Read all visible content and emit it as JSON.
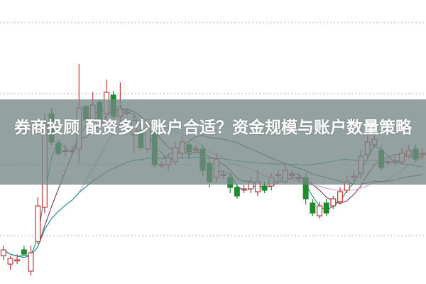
{
  "title": "券商投顾 配资多少账户合适？资金规模与账户数量策略",
  "chart_data": {
    "type": "candlestick",
    "grid": true,
    "ylim": [
      0,
      100
    ],
    "colors": {
      "up": "#c0393b",
      "down": "#1f8a2e",
      "band": "#768686",
      "ma": [
        "#2a8a8a",
        "#7a3a4a",
        "#d79be0",
        "#3c6e30",
        "#2b9ea0"
      ]
    },
    "ohlc": [
      [
        10,
        12,
        13.5,
        8.5
      ],
      [
        7,
        9,
        10,
        5
      ],
      [
        8.5,
        8.5,
        10.5,
        7
      ],
      [
        12,
        10.5,
        13.5,
        10
      ],
      [
        4.5,
        11,
        13.5,
        3
      ],
      [
        15,
        27.5,
        30.5,
        14
      ],
      [
        27,
        56,
        60,
        25
      ],
      [
        60,
        50,
        62,
        49
      ],
      [
        49.5,
        46,
        50,
        45
      ],
      [
        47,
        47,
        49,
        45
      ],
      [
        47,
        47,
        49,
        45
      ],
      [
        47.5,
        62,
        77.5,
        42.5
      ],
      [
        62.5,
        58,
        63,
        57
      ],
      [
        57.5,
        63,
        67.5,
        55
      ],
      [
        64,
        58,
        65,
        57
      ],
      [
        60,
        67.5,
        72,
        58
      ],
      [
        66.5,
        59,
        68,
        58
      ],
      [
        59,
        61.5,
        71,
        57
      ],
      [
        60.5,
        60.5,
        62,
        59.5
      ],
      [
        52.5,
        57.5,
        60,
        46
      ],
      [
        54,
        48,
        56,
        47
      ],
      [
        47.5,
        55,
        57,
        46
      ],
      [
        55,
        42,
        57,
        41
      ],
      [
        42,
        42,
        43,
        41
      ],
      [
        42,
        44.5,
        46,
        40
      ],
      [
        43,
        48,
        50,
        42
      ],
      [
        46,
        50,
        52,
        44
      ],
      [
        49,
        46.5,
        50,
        44
      ],
      [
        47.5,
        47.5,
        49,
        46
      ],
      [
        47.5,
        40,
        49,
        38
      ],
      [
        42.5,
        36,
        44,
        34
      ],
      [
        37.5,
        44,
        46,
        36
      ],
      [
        38.5,
        38.5,
        40,
        37
      ],
      [
        37.5,
        34,
        39,
        32
      ],
      [
        34,
        31,
        35,
        30
      ],
      [
        33.5,
        33.5,
        35,
        32
      ],
      [
        33.5,
        36,
        38,
        32
      ],
      [
        32.5,
        36,
        40,
        31
      ],
      [
        34.5,
        33,
        36,
        32
      ],
      [
        34.5,
        37.5,
        39,
        33
      ],
      [
        38.5,
        38.5,
        40,
        37
      ],
      [
        36,
        40,
        42,
        35
      ],
      [
        38.5,
        38.5,
        40,
        37
      ],
      [
        37.5,
        37.5,
        39,
        36
      ],
      [
        37.5,
        30,
        39,
        28
      ],
      [
        28.5,
        25,
        30,
        24
      ],
      [
        24,
        27.5,
        29,
        23
      ],
      [
        28.5,
        25,
        30,
        24
      ],
      [
        27.5,
        30,
        31,
        26.5
      ],
      [
        29,
        32.5,
        34,
        28
      ],
      [
        33,
        36,
        38,
        32
      ],
      [
        38,
        38,
        40,
        36
      ],
      [
        39,
        45,
        47,
        37
      ],
      [
        45.5,
        50,
        55,
        44
      ],
      [
        49,
        51,
        53,
        48
      ],
      [
        47,
        41,
        49,
        40
      ],
      [
        43,
        43,
        44,
        42
      ],
      [
        43.5,
        43.5,
        45,
        42
      ],
      [
        43,
        46,
        48,
        42
      ],
      [
        45,
        47,
        49,
        44
      ],
      [
        47.5,
        44,
        49,
        43
      ],
      [
        46,
        46,
        48,
        44
      ]
    ],
    "gridlines": [
      17,
      42,
      67,
      92
    ]
  }
}
